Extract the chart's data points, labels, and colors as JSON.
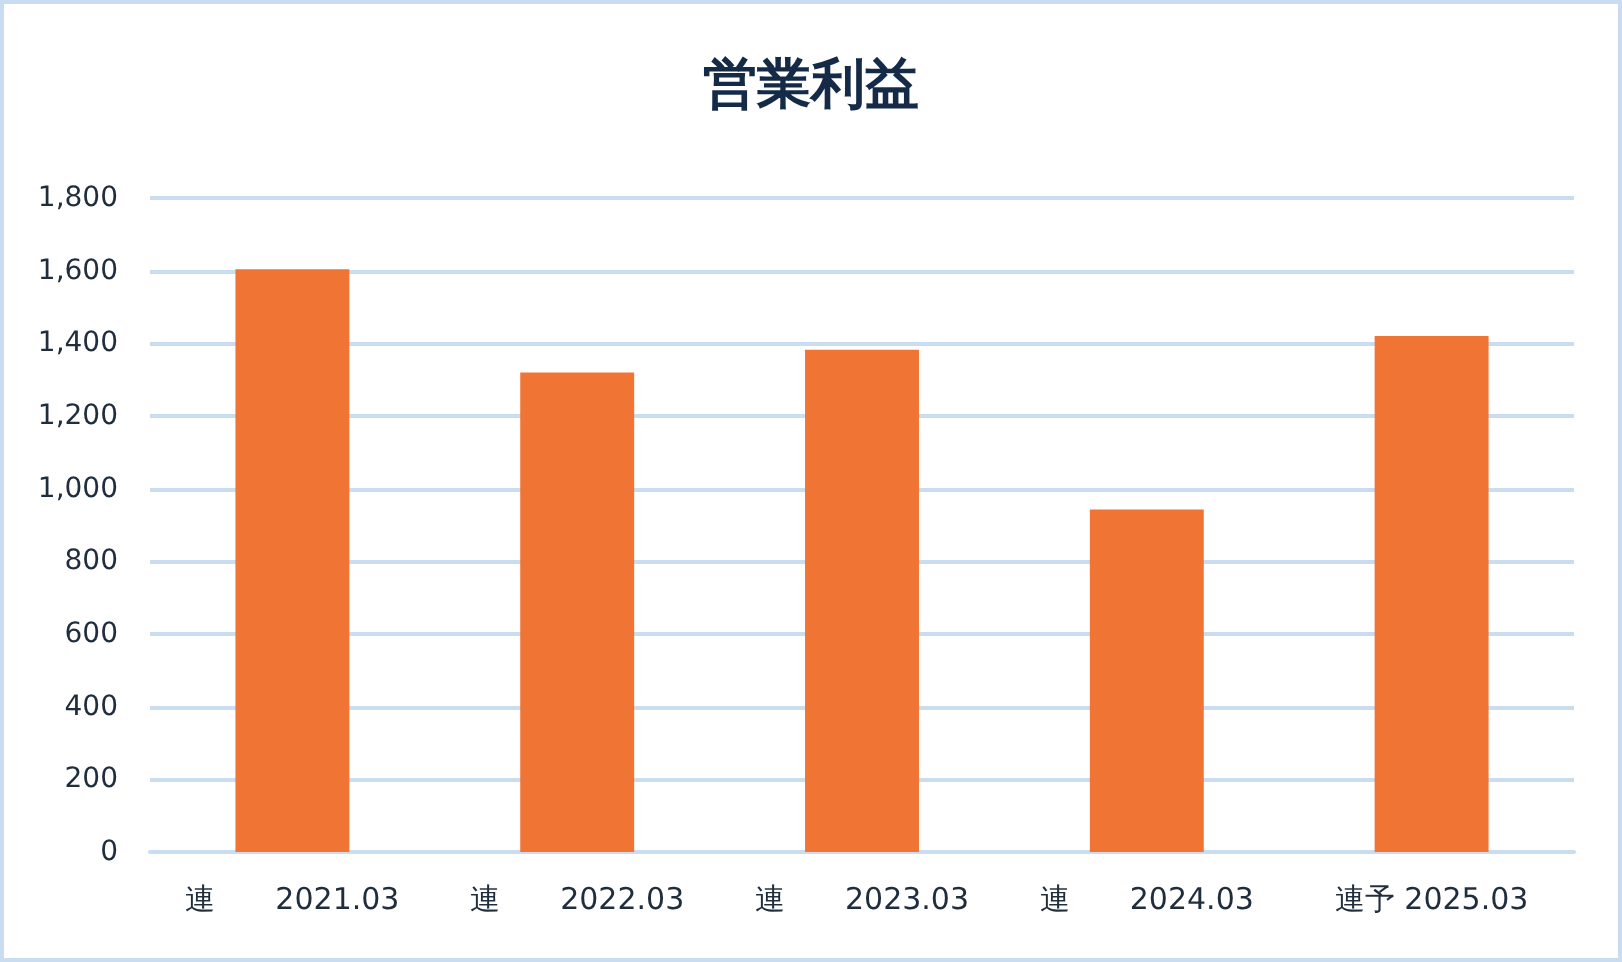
{
  "chart_data": {
    "type": "bar",
    "title": "営業利益",
    "categories": [
      "連　　2021.03",
      "連　　2022.03",
      "連　　2023.03",
      "連　　2024.03",
      "連予 2025.03"
    ],
    "values": [
      1604,
      1320,
      1382,
      943,
      1420
    ],
    "color": "#f07433",
    "ylim": [
      0,
      1800
    ],
    "yticks": [
      0,
      200,
      400,
      600,
      800,
      {
        "value": 1000,
        "label": "1,000"
      },
      {
        "value": 1200,
        "label": "1,200"
      },
      {
        "value": 1400,
        "label": "1,400"
      },
      {
        "value": 1600,
        "label": "1,600"
      },
      {
        "value": 1800,
        "label": "1,800"
      }
    ],
    "grid": "y"
  }
}
